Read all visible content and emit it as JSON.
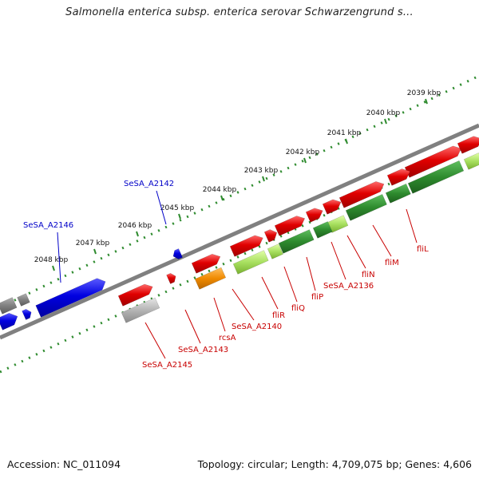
{
  "title": "Salmonella enterica subsp. enterica serovar Schwarzengrund s...",
  "footer": {
    "accession": "Accession: NC_011094",
    "summary": "Topology: circular; Length: 4,709,075 bp; Genes: 4,606"
  },
  "colors": {
    "red": "#e00000",
    "blue": "#0000e0",
    "green": "#2e8b2e",
    "lightgreen": "#a8e060",
    "orange": "#f08a00",
    "gray": "#9a9a9a",
    "backbone": "#808080",
    "label_red": "#c80000",
    "label_blue": "#0000c8"
  },
  "ticks": [
    {
      "label": "2039 kbp"
    },
    {
      "label": "2040 kbp"
    },
    {
      "label": "2041 kbp"
    },
    {
      "label": "2042 kbp"
    },
    {
      "label": "2043 kbp"
    },
    {
      "label": "2044 kbp"
    },
    {
      "label": "2045 kbp"
    },
    {
      "label": "2046 kbp"
    },
    {
      "label": "2047 kbp"
    },
    {
      "label": "2048 kbp"
    }
  ],
  "gene_labels": [
    {
      "name": "SeSA_A2142",
      "color": "blue"
    },
    {
      "name": "SeSA_A2146",
      "color": "blue"
    },
    {
      "name": "fliL",
      "color": "red"
    },
    {
      "name": "fliM",
      "color": "red"
    },
    {
      "name": "fliN",
      "color": "red"
    },
    {
      "name": "SeSA_A2136",
      "color": "red"
    },
    {
      "name": "fliP",
      "color": "red"
    },
    {
      "name": "fliQ",
      "color": "red"
    },
    {
      "name": "fliR",
      "color": "red"
    },
    {
      "name": "SeSA_A2140",
      "color": "red"
    },
    {
      "name": "rcsA",
      "color": "red"
    },
    {
      "name": "SeSA_A2143",
      "color": "red"
    },
    {
      "name": "SeSA_A2145",
      "color": "red"
    }
  ]
}
